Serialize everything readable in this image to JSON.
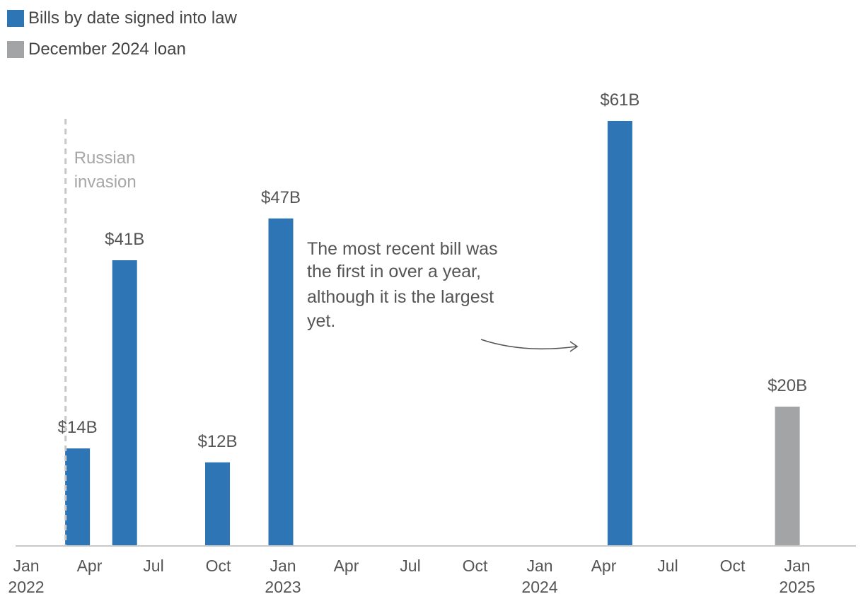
{
  "chart_data": {
    "type": "bar",
    "series": [
      {
        "name": "Bills by date signed into law",
        "color": "#2e75b6",
        "points": [
          {
            "date": "2022-03-15",
            "value": 14,
            "label": "$14B"
          },
          {
            "date": "2022-05-21",
            "value": 41,
            "label": "$41B"
          },
          {
            "date": "2022-09-30",
            "value": 12,
            "label": "$12B"
          },
          {
            "date": "2022-12-29",
            "value": 47,
            "label": "$47B"
          },
          {
            "date": "2024-04-24",
            "value": 61,
            "label": "$61B"
          }
        ]
      },
      {
        "name": "December 2024 loan",
        "color": "#a2a4a6",
        "points": [
          {
            "date": "2024-12-18",
            "value": 20,
            "label": "$20B"
          }
        ]
      }
    ],
    "x_ticks": [
      {
        "month": "Jan",
        "year": "2022"
      },
      {
        "month": "Apr",
        "year": ""
      },
      {
        "month": "Jul",
        "year": ""
      },
      {
        "month": "Oct",
        "year": ""
      },
      {
        "month": "Jan",
        "year": "2023"
      },
      {
        "month": "Apr",
        "year": ""
      },
      {
        "month": "Jul",
        "year": ""
      },
      {
        "month": "Oct",
        "year": ""
      },
      {
        "month": "Jan",
        "year": "2024"
      },
      {
        "month": "Apr",
        "year": ""
      },
      {
        "month": "Jul",
        "year": ""
      },
      {
        "month": "Oct",
        "year": ""
      },
      {
        "month": "Jan",
        "year": "2025"
      }
    ],
    "x_range": [
      "2022-01-01",
      "2025-03-01"
    ],
    "ylim": [
      0,
      61
    ],
    "event": {
      "date": "2022-02-24",
      "label_lines": [
        "Russian",
        "invasion"
      ]
    },
    "annotation": {
      "lines": [
        "The most recent bill was",
        "the first in over a year,",
        "although it is the largest",
        "yet."
      ]
    },
    "colors": {
      "axis": "#c8c8c8",
      "text": "#555555",
      "muted": "#a6a6a6",
      "event_line": "#c8c8c8"
    }
  }
}
